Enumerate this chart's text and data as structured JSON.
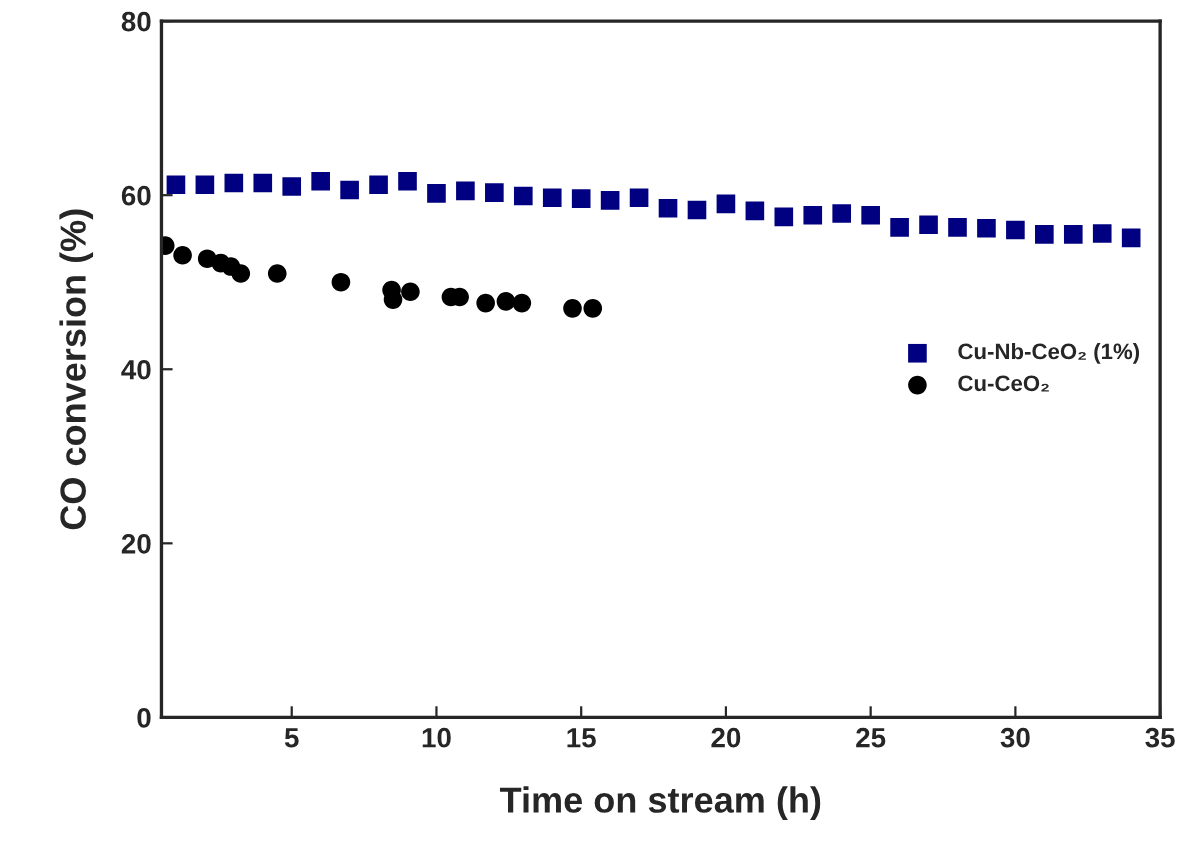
{
  "chart_data": {
    "type": "scatter",
    "xlabel": "Time on stream (h)",
    "ylabel": "CO conversion (%)",
    "xlim": [
      0.5,
      35
    ],
    "xticks": [
      5,
      10,
      15,
      20,
      25,
      30,
      35
    ],
    "ylim": [
      0,
      80
    ],
    "yticks": [
      0,
      20,
      40,
      60,
      80
    ],
    "grid": false,
    "legend": "right",
    "series": [
      {
        "name": "Cu-Nb-CeO₂ (1%)",
        "color": "#000080",
        "marker": "square",
        "x": [
          1,
          2,
          3,
          4,
          5,
          6,
          7,
          8,
          9,
          10,
          11,
          12,
          13,
          14,
          15,
          16,
          17,
          18,
          19,
          20,
          21,
          22,
          23,
          24,
          25,
          26,
          27,
          28,
          29,
          30,
          31,
          32,
          33,
          34
        ],
        "values": [
          61.2,
          61.2,
          61.4,
          61.4,
          61.0,
          61.6,
          60.6,
          61.2,
          61.6,
          60.2,
          60.5,
          60.3,
          59.9,
          59.7,
          59.6,
          59.4,
          59.7,
          58.5,
          58.3,
          59.0,
          58.2,
          57.5,
          57.7,
          57.9,
          57.7,
          56.3,
          56.6,
          56.3,
          56.2,
          56.0,
          55.5,
          55.5,
          55.6,
          55.1
        ]
      },
      {
        "name": "Cu-CeO₂",
        "color": "#000000",
        "marker": "circle",
        "x": [
          0.63,
          1.23,
          2.08,
          2.55,
          2.9,
          3.24,
          4.5,
          6.7,
          8.45,
          8.5,
          9.1,
          10.5,
          10.8,
          11.7,
          12.4,
          12.95,
          14.7,
          15.4
        ],
        "values": [
          54.2,
          53.1,
          52.7,
          52.2,
          51.8,
          51.0,
          51.0,
          50.0,
          49.1,
          48.0,
          48.9,
          48.3,
          48.3,
          47.6,
          47.8,
          47.6,
          47.0,
          47.0
        ]
      }
    ]
  }
}
